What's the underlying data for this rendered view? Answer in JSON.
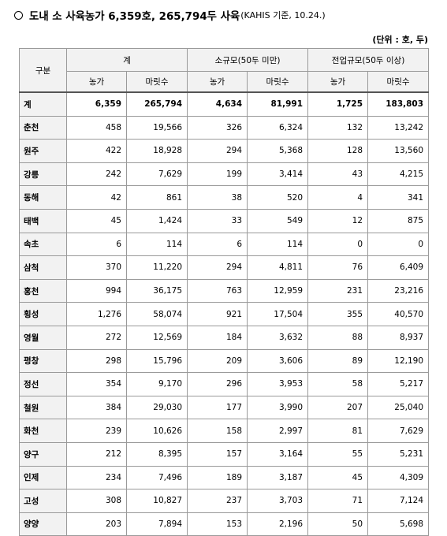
{
  "title": {
    "main": "도내 소 사육농가 6,359호, 265,794두 사육",
    "source": "(KAHIS 기준, 10.24.)"
  },
  "unit_note": "(단위 : 호, 두)",
  "table": {
    "header_category": "구분",
    "groups": [
      "계",
      "소규모(50두 미만)",
      "전업규모(50두 이상)"
    ],
    "sub_headers": [
      "농가",
      "마릿수",
      "농가",
      "마릿수",
      "농가",
      "마릿수"
    ],
    "rows": [
      {
        "region": "계",
        "values": [
          "6,359",
          "265,794",
          "4,634",
          "81,991",
          "1,725",
          "183,803"
        ]
      },
      {
        "region": "춘천",
        "values": [
          "458",
          "19,566",
          "326",
          "6,324",
          "132",
          "13,242"
        ]
      },
      {
        "region": "원주",
        "values": [
          "422",
          "18,928",
          "294",
          "5,368",
          "128",
          "13,560"
        ]
      },
      {
        "region": "강릉",
        "values": [
          "242",
          "7,629",
          "199",
          "3,414",
          "43",
          "4,215"
        ]
      },
      {
        "region": "동해",
        "values": [
          "42",
          "861",
          "38",
          "520",
          "4",
          "341"
        ]
      },
      {
        "region": "태백",
        "values": [
          "45",
          "1,424",
          "33",
          "549",
          "12",
          "875"
        ]
      },
      {
        "region": "속초",
        "values": [
          "6",
          "114",
          "6",
          "114",
          "0",
          "0"
        ]
      },
      {
        "region": "삼척",
        "values": [
          "370",
          "11,220",
          "294",
          "4,811",
          "76",
          "6,409"
        ]
      },
      {
        "region": "홍천",
        "values": [
          "994",
          "36,175",
          "763",
          "12,959",
          "231",
          "23,216"
        ]
      },
      {
        "region": "횡성",
        "values": [
          "1,276",
          "58,074",
          "921",
          "17,504",
          "355",
          "40,570"
        ]
      },
      {
        "region": "영월",
        "values": [
          "272",
          "12,569",
          "184",
          "3,632",
          "88",
          "8,937"
        ]
      },
      {
        "region": "평창",
        "values": [
          "298",
          "15,796",
          "209",
          "3,606",
          "89",
          "12,190"
        ]
      },
      {
        "region": "정선",
        "values": [
          "354",
          "9,170",
          "296",
          "3,953",
          "58",
          "5,217"
        ]
      },
      {
        "region": "철원",
        "values": [
          "384",
          "29,030",
          "177",
          "3,990",
          "207",
          "25,040"
        ]
      },
      {
        "region": "화천",
        "values": [
          "239",
          "10,626",
          "158",
          "2,997",
          "81",
          "7,629"
        ]
      },
      {
        "region": "양구",
        "values": [
          "212",
          "8,395",
          "157",
          "3,164",
          "55",
          "5,231"
        ]
      },
      {
        "region": "인제",
        "values": [
          "234",
          "7,496",
          "189",
          "3,187",
          "45",
          "4,309"
        ]
      },
      {
        "region": "고성",
        "values": [
          "308",
          "10,827",
          "237",
          "3,703",
          "71",
          "7,124"
        ]
      },
      {
        "region": "양양",
        "values": [
          "203",
          "7,894",
          "153",
          "2,196",
          "50",
          "5,698"
        ]
      }
    ]
  }
}
